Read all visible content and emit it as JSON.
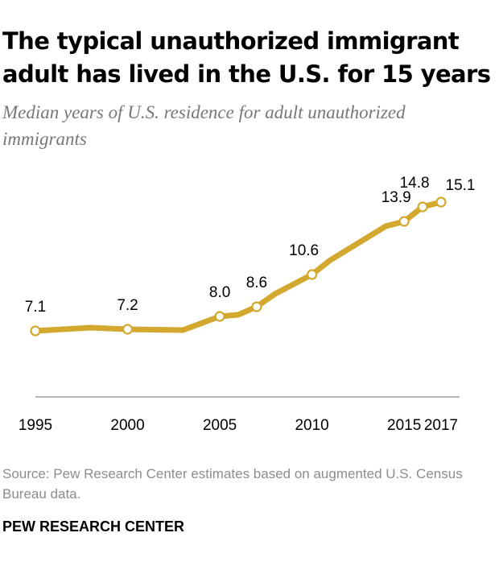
{
  "header": {
    "title": "The typical unauthorized immigrant adult has lived in the U.S. for 15 years",
    "subtitle": "Median years of U.S. residence for adult unauthorized immigrants"
  },
  "chart_data": {
    "type": "line",
    "title": "The typical unauthorized immigrant adult has lived in the U.S. for 15 years",
    "subtitle": "Median years of U.S. residence for adult unauthorized immigrants",
    "xlabel": "",
    "ylabel": "",
    "x_ticks": [
      "1995",
      "2000",
      "2005",
      "2010",
      "2015",
      "2017"
    ],
    "x_tick_values": [
      1995,
      2000,
      2005,
      2010,
      2015,
      2017
    ],
    "xlim": [
      1995,
      2017
    ],
    "ylim": [
      3,
      16.5
    ],
    "grid": false,
    "series": [
      {
        "name": "Median years of U.S. residence",
        "color": "#d3a82f",
        "x": [
          1995,
          1998,
          2000,
          2003,
          2005,
          2006,
          2007,
          2008,
          2010,
          2011,
          2012,
          2014,
          2015,
          2016,
          2017
        ],
        "values": [
          7.1,
          7.3,
          7.2,
          7.15,
          8.0,
          8.1,
          8.6,
          9.4,
          10.6,
          11.5,
          12.2,
          13.6,
          13.9,
          14.8,
          15.1
        ]
      }
    ],
    "markers": [
      {
        "x": 1995,
        "y": 7.1,
        "label": "7.1",
        "label_pos": "above"
      },
      {
        "x": 2000,
        "y": 7.2,
        "label": "7.2",
        "label_pos": "above"
      },
      {
        "x": 2005,
        "y": 8.0,
        "label": "8.0",
        "label_pos": "above"
      },
      {
        "x": 2007,
        "y": 8.6,
        "label": "8.6",
        "label_pos": "above"
      },
      {
        "x": 2010,
        "y": 10.6,
        "label": "10.6",
        "label_pos": "above-left"
      },
      {
        "x": 2015,
        "y": 13.9,
        "label": "13.9",
        "label_pos": "above-left"
      },
      {
        "x": 2016,
        "y": 14.8,
        "label": "14.8",
        "label_pos": "above-left"
      },
      {
        "x": 2017,
        "y": 15.1,
        "label": "15.1",
        "label_pos": "above-right"
      }
    ]
  },
  "footer": {
    "source": "Source: Pew Research Center estimates based on augmented U.S. Census Bureau data.",
    "brand": "PEW RESEARCH CENTER"
  }
}
